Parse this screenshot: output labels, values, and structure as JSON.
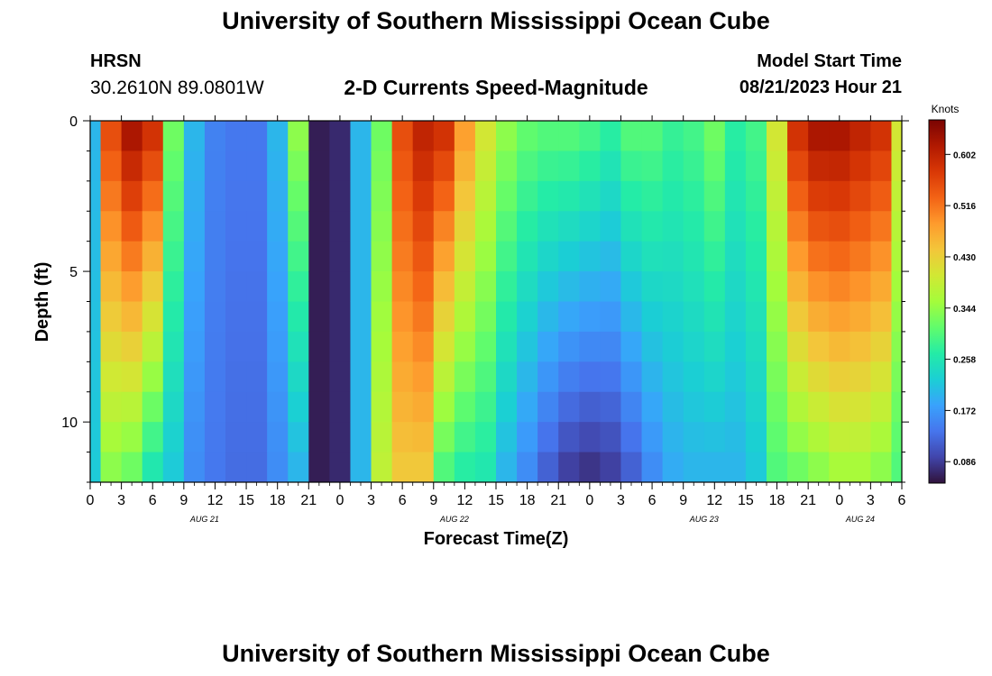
{
  "header": {
    "title": "University of Southern Mississippi Ocean Cube",
    "station": "HRSN",
    "coordinates": "30.2610N  89.0801W",
    "subtitle": "2-D Currents Speed-Magnitude",
    "model_start_label": "Model Start Time",
    "model_start_value": "08/21/2023 Hour 21"
  },
  "footer": {
    "title": "University of Southern Mississippi Ocean Cube"
  },
  "chart_data": {
    "type": "heatmap",
    "xlabel": "Forecast Time(Z)",
    "ylabel": "Depth (ft)",
    "x_range_hours": [
      0,
      78
    ],
    "ylim": [
      0,
      12
    ],
    "y_ticks": [
      0,
      5,
      10
    ],
    "x_tick_labels": [
      "0",
      "3",
      "6",
      "9",
      "12",
      "15",
      "18",
      "21",
      "0",
      "3",
      "6",
      "9",
      "12",
      "15",
      "18",
      "21",
      "0",
      "3",
      "6",
      "9",
      "12",
      "15",
      "18",
      "21",
      "0",
      "3",
      "6"
    ],
    "date_labels": [
      {
        "label": "AUG 21",
        "hour": 11
      },
      {
        "label": "AUG 22",
        "hour": 35
      },
      {
        "label": "AUG 23",
        "hour": 59
      },
      {
        "label": "AUG 24",
        "hour": 74
      }
    ],
    "colorbar": {
      "label": "Knots",
      "min": 0.05,
      "max": 0.66,
      "ticks": [
        "0.602",
        "0.516",
        "0.430",
        "0.344",
        "0.258",
        "0.172",
        "0.086"
      ],
      "tick_values": [
        0.602,
        0.516,
        0.43,
        0.344,
        0.258,
        0.172,
        0.086
      ],
      "colormap": [
        "#30123b",
        "#4145ab",
        "#4675ed",
        "#39a2fc",
        "#1bcfd4",
        "#24eca6",
        "#61fc6c",
        "#a4fc3b",
        "#d1e834",
        "#f3c63a",
        "#fe9b2d",
        "#f36315",
        "#d93806",
        "#b11901",
        "#7a0402"
      ]
    },
    "hours": [
      0,
      2,
      4,
      6,
      8,
      10,
      12,
      14,
      16,
      18,
      20,
      22,
      24,
      26,
      28,
      30,
      32,
      34,
      36,
      38,
      40,
      42,
      44,
      46,
      48,
      50,
      52,
      54,
      56,
      58,
      60,
      62,
      64,
      66,
      68,
      70,
      72,
      74,
      76,
      78
    ],
    "surface_speed": [
      0.2,
      0.55,
      0.62,
      0.58,
      0.32,
      0.2,
      0.15,
      0.14,
      0.14,
      0.2,
      0.34,
      0.06,
      0.07,
      0.2,
      0.32,
      0.55,
      0.6,
      0.58,
      0.48,
      0.4,
      0.34,
      0.31,
      0.3,
      0.3,
      0.29,
      0.27,
      0.3,
      0.3,
      0.28,
      0.29,
      0.32,
      0.27,
      0.29,
      0.4,
      0.58,
      0.62,
      0.62,
      0.6,
      0.58,
      0.4
    ],
    "bottom_speed": [
      0.22,
      0.34,
      0.32,
      0.26,
      0.22,
      0.16,
      0.14,
      0.13,
      0.13,
      0.16,
      0.2,
      0.06,
      0.07,
      0.2,
      0.38,
      0.44,
      0.44,
      0.3,
      0.27,
      0.26,
      0.2,
      0.16,
      0.12,
      0.09,
      0.08,
      0.09,
      0.12,
      0.16,
      0.19,
      0.2,
      0.2,
      0.2,
      0.22,
      0.3,
      0.32,
      0.34,
      0.36,
      0.36,
      0.34,
      0.3
    ]
  }
}
